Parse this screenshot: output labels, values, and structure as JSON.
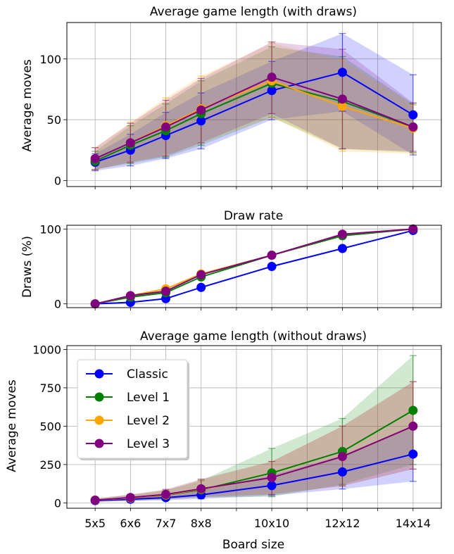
{
  "chart_data": [
    {
      "type": "line",
      "title": "Average game length (with draws)",
      "xlabel": "",
      "ylabel": "Average moves",
      "x": [
        5,
        6,
        7,
        8,
        10,
        12,
        14
      ],
      "xlim": [
        4.2,
        14.8
      ],
      "ylim": [
        -5,
        130
      ],
      "yticks": [
        0,
        50,
        100
      ],
      "grid": true,
      "band": "error",
      "series": [
        {
          "name": "Classic",
          "color": "#0000ff",
          "values": [
            15,
            25,
            37,
            49,
            74,
            89,
            54
          ],
          "lower": [
            8,
            12,
            18,
            26,
            50,
            57,
            21
          ],
          "upper": [
            22,
            38,
            56,
            72,
            98,
            121,
            87
          ]
        },
        {
          "name": "Level 1",
          "color": "#008000",
          "values": [
            16,
            29,
            41,
            55,
            80,
            65,
            44
          ],
          "lower": [
            9,
            14,
            19,
            29,
            52,
            26,
            23
          ],
          "upper": [
            24,
            45,
            63,
            82,
            110,
            102,
            63
          ]
        },
        {
          "name": "Level 2",
          "color": "#ffa500",
          "values": [
            18,
            31,
            45,
            59,
            82,
            61,
            43
          ],
          "lower": [
            9,
            15,
            21,
            31,
            52,
            24,
            22
          ],
          "upper": [
            27,
            48,
            68,
            86,
            113,
            99,
            62
          ]
        },
        {
          "name": "Level 3",
          "color": "#800080",
          "values": [
            18,
            31,
            44,
            58,
            85,
            67,
            44
          ],
          "lower": [
            9,
            15,
            20,
            31,
            55,
            26,
            24
          ],
          "upper": [
            27,
            47,
            66,
            84,
            114,
            108,
            64
          ]
        }
      ]
    },
    {
      "type": "line",
      "title": "Draw rate",
      "xlabel": "",
      "ylabel": "Draws (%)",
      "x": [
        5,
        6,
        7,
        8,
        10,
        12,
        14
      ],
      "xlim": [
        4.2,
        14.8
      ],
      "ylim": [
        -5,
        105
      ],
      "yticks": [
        0,
        100
      ],
      "grid": true,
      "series": [
        {
          "name": "Classic",
          "color": "#0000ff",
          "values": [
            0,
            2,
            7,
            22,
            50,
            74,
            98
          ]
        },
        {
          "name": "Level 1",
          "color": "#008000",
          "values": [
            0,
            9,
            15,
            36,
            65,
            91,
            100
          ]
        },
        {
          "name": "Level 2",
          "color": "#ffa500",
          "values": [
            0,
            11,
            20,
            40,
            65,
            93,
            100
          ]
        },
        {
          "name": "Level 3",
          "color": "#800080",
          "values": [
            0,
            11,
            17,
            39,
            65,
            93,
            100
          ]
        }
      ]
    },
    {
      "type": "line",
      "title": "Average game length (without draws)",
      "xlabel": "Board size",
      "ylabel": "Average moves",
      "x": [
        5,
        6,
        7,
        8,
        10,
        12,
        14
      ],
      "xlim": [
        4.2,
        14.8
      ],
      "ylim": [
        -35,
        1025
      ],
      "yticks": [
        0,
        250,
        500,
        750,
        1000
      ],
      "grid": true,
      "band": "error",
      "legend": "upper left",
      "tick_labels": [
        "5x5",
        "6x6",
        "7x7",
        "8x8",
        "10x10",
        "12x12",
        "14x14"
      ],
      "series": [
        {
          "name": "Classic",
          "color": "#0000ff",
          "values": [
            15,
            24,
            34,
            52,
            113,
            202,
            318
          ],
          "lower": [
            8,
            12,
            17,
            26,
            48,
            90,
            140
          ],
          "upper": [
            22,
            36,
            52,
            80,
            180,
            310,
            500
          ]
        },
        {
          "name": "Level 1",
          "color": "#008000",
          "values": [
            18,
            32,
            50,
            85,
            195,
            335,
            603
          ],
          "lower": [
            8,
            14,
            22,
            35,
            40,
            120,
            250
          ],
          "upper": [
            28,
            52,
            82,
            145,
            355,
            550,
            960
          ]
        },
        {
          "name": "Level 2",
          "color": "#ffa500",
          "values": [
            18,
            32,
            52,
            90,
            165,
            302,
            500
          ],
          "lower": [
            8,
            14,
            23,
            38,
            55,
            110,
            220
          ],
          "upper": [
            28,
            52,
            82,
            150,
            270,
            500,
            790
          ]
        },
        {
          "name": "Level 3",
          "color": "#800080",
          "values": [
            18,
            35,
            55,
            92,
            165,
            302,
            500
          ],
          "lower": [
            8,
            15,
            24,
            38,
            55,
            110,
            220
          ],
          "upper": [
            28,
            55,
            88,
            155,
            270,
            500,
            790
          ]
        }
      ]
    }
  ]
}
